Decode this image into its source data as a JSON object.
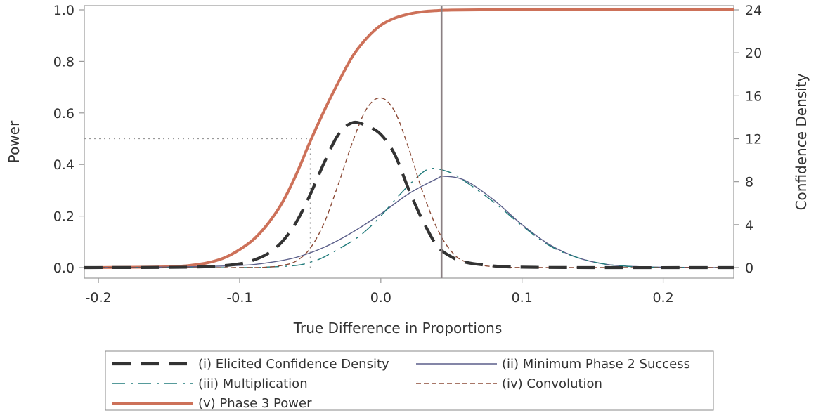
{
  "chart_data": {
    "type": "line",
    "title": "",
    "xlabel": "True Difference in Proportions",
    "ylabel": "Power",
    "y2label": "Confidence Density",
    "xlim": [
      -0.21,
      0.25
    ],
    "ylim": [
      0,
      1.0
    ],
    "y2lim": [
      0,
      24
    ],
    "x_ticks": [
      -0.2,
      -0.1,
      0.0,
      0.1,
      0.2
    ],
    "x_tick_labels": [
      "-0.2",
      "-0.1",
      "0.0",
      "0.1",
      "0.2"
    ],
    "y_ticks": [
      0.0,
      0.2,
      0.4,
      0.6,
      0.8,
      1.0
    ],
    "y_tick_labels": [
      "0.0",
      "0.2",
      "0.4",
      "0.6",
      "0.8",
      "1.0"
    ],
    "y2_ticks": [
      0,
      4,
      8,
      12,
      16,
      20,
      24
    ],
    "y2_tick_labels": [
      "0",
      "4",
      "8",
      "12",
      "16",
      "20",
      "24"
    ],
    "grid": false,
    "legend_position": "bottom",
    "reference_lines": {
      "vertical_x": 0.043,
      "power_half_level": 0.5,
      "power_half_x": -0.05
    },
    "series": [
      {
        "name": "(i) Elicited Confidence Density",
        "axis": "right",
        "style": "long-dash",
        "color": "#333333",
        "x": [
          -0.21,
          -0.15,
          -0.12,
          -0.1,
          -0.09,
          -0.08,
          -0.07,
          -0.06,
          -0.05,
          -0.04,
          -0.03,
          -0.02,
          -0.01,
          0.0,
          0.01,
          0.02,
          0.03,
          0.04,
          0.05,
          0.06,
          0.08,
          0.1,
          0.15,
          0.25
        ],
        "values": [
          0.0,
          0.02,
          0.1,
          0.35,
          0.7,
          1.3,
          2.4,
          4.2,
          6.8,
          9.8,
          12.4,
          13.5,
          13.2,
          12.4,
          10.5,
          7.2,
          4.3,
          2.0,
          1.0,
          0.5,
          0.15,
          0.04,
          0.0,
          0.0
        ]
      },
      {
        "name": "(ii) Minimum Phase 2 Success",
        "axis": "right",
        "style": "solid-thin",
        "color": "#5b5f8a",
        "x": [
          -0.21,
          -0.15,
          -0.1,
          -0.08,
          -0.06,
          -0.04,
          -0.02,
          0.0,
          0.02,
          0.04,
          0.045,
          0.06,
          0.08,
          0.1,
          0.12,
          0.14,
          0.16,
          0.18,
          0.2,
          0.25
        ],
        "values": [
          0.0,
          0.05,
          0.2,
          0.45,
          0.95,
          1.9,
          3.3,
          5.0,
          6.9,
          8.3,
          8.5,
          8.1,
          6.3,
          4.0,
          2.1,
          0.9,
          0.3,
          0.1,
          0.03,
          0.0
        ]
      },
      {
        "name": "(iii) Multiplication",
        "axis": "right",
        "style": "long-dash-short-dash",
        "color": "#1f7a7a",
        "x": [
          -0.21,
          -0.1,
          -0.08,
          -0.06,
          -0.05,
          -0.04,
          -0.02,
          -0.01,
          0.0,
          0.01,
          0.02,
          0.03,
          0.035,
          0.04,
          0.05,
          0.06,
          0.08,
          0.1,
          0.12,
          0.14,
          0.16,
          0.18,
          0.2,
          0.25
        ],
        "values": [
          0.0,
          0.0,
          0.05,
          0.2,
          0.5,
          1.0,
          2.5,
          3.5,
          4.8,
          6.3,
          7.7,
          8.9,
          9.2,
          9.2,
          8.8,
          8.0,
          6.1,
          3.9,
          2.0,
          0.9,
          0.3,
          0.08,
          0.02,
          0.0
        ]
      },
      {
        "name": "(iv) Convolution",
        "axis": "right",
        "style": "short-dash",
        "color": "#8b4a36",
        "x": [
          -0.21,
          -0.1,
          -0.08,
          -0.07,
          -0.06,
          -0.05,
          -0.04,
          -0.03,
          -0.02,
          -0.01,
          0.0,
          0.01,
          0.02,
          0.03,
          0.04,
          0.05,
          0.06,
          0.08,
          0.1,
          0.25
        ],
        "values": [
          0.0,
          0.0,
          0.05,
          0.2,
          0.6,
          1.8,
          4.2,
          7.8,
          11.7,
          14.8,
          15.8,
          14.5,
          11.0,
          6.9,
          3.6,
          1.5,
          0.55,
          0.08,
          0.01,
          0.0
        ]
      },
      {
        "name": "(v) Phase 3 Power",
        "axis": "left",
        "style": "solid-thick",
        "color": "#cd7159",
        "x": [
          -0.21,
          -0.15,
          -0.13,
          -0.12,
          -0.11,
          -0.1,
          -0.09,
          -0.08,
          -0.07,
          -0.06,
          -0.05,
          -0.04,
          -0.03,
          -0.02,
          -0.01,
          0.0,
          0.01,
          0.02,
          0.03,
          0.04,
          0.05,
          0.07,
          0.1,
          0.25
        ],
        "values": [
          0.0,
          0.003,
          0.012,
          0.022,
          0.04,
          0.07,
          0.11,
          0.17,
          0.25,
          0.36,
          0.49,
          0.61,
          0.72,
          0.82,
          0.89,
          0.94,
          0.968,
          0.984,
          0.993,
          0.997,
          0.999,
          1.0,
          1.0,
          1.0
        ]
      }
    ]
  }
}
